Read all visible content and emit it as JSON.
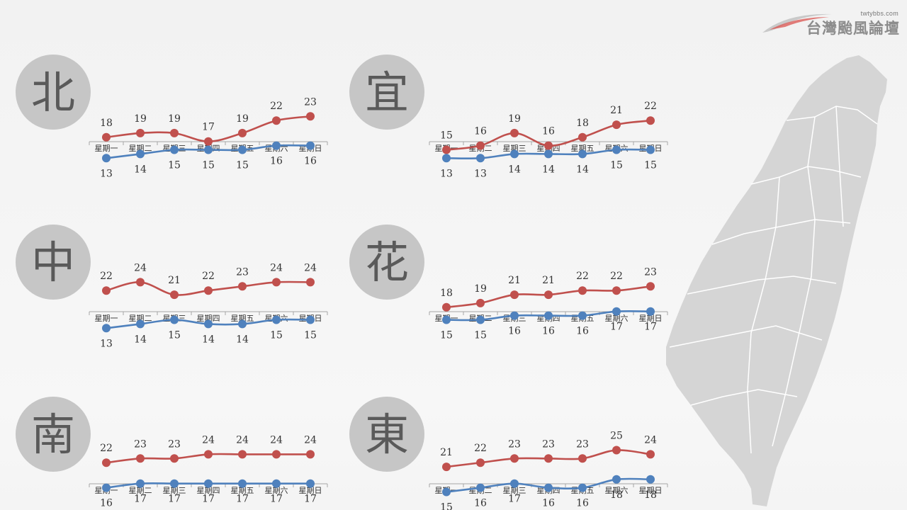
{
  "logo": {
    "site": "twtybbs.com",
    "brand": "台灣颱風論壇"
  },
  "colors": {
    "high": "#c0504d",
    "low": "#4f81bd",
    "circle": "#c6c6c6",
    "axis": "#a6a6a6",
    "map": "#d5d5d5"
  },
  "chart_data": [
    {
      "type": "line",
      "region": "北",
      "categories": [
        "星期一",
        "星期二",
        "星期三",
        "星期四",
        "星期五",
        "星期六",
        "星期日"
      ],
      "series": [
        {
          "values": [
            18,
            19,
            19,
            17,
            19,
            22,
            23
          ]
        },
        {
          "values": [
            13,
            14,
            15,
            15,
            15,
            16,
            16
          ]
        }
      ]
    },
    {
      "type": "line",
      "region": "宜",
      "categories": [
        "星期一",
        "星期二",
        "星期三",
        "星期四",
        "星期五",
        "星期六",
        "星期日"
      ],
      "series": [
        {
          "values": [
            15,
            16,
            19,
            16,
            18,
            21,
            22
          ]
        },
        {
          "values": [
            13,
            13,
            14,
            14,
            14,
            15,
            15
          ]
        }
      ]
    },
    {
      "type": "line",
      "region": "中",
      "categories": [
        "星期一",
        "星期二",
        "星期三",
        "星期四",
        "星期五",
        "星期六",
        "星期日"
      ],
      "series": [
        {
          "values": [
            22,
            24,
            21,
            22,
            23,
            24,
            24
          ]
        },
        {
          "values": [
            13,
            14,
            15,
            14,
            14,
            15,
            15
          ]
        }
      ]
    },
    {
      "type": "line",
      "region": "花",
      "categories": [
        "星期一",
        "星期二",
        "星期三",
        "星期四",
        "星期五",
        "星期六",
        "星期日"
      ],
      "series": [
        {
          "values": [
            18,
            19,
            21,
            21,
            22,
            22,
            23
          ]
        },
        {
          "values": [
            15,
            15,
            16,
            16,
            16,
            17,
            17
          ]
        }
      ]
    },
    {
      "type": "line",
      "region": "南",
      "categories": [
        "星期一",
        "星期二",
        "星期三",
        "星期四",
        "星期五",
        "星期六",
        "星期日"
      ],
      "series": [
        {
          "values": [
            22,
            23,
            23,
            24,
            24,
            24,
            24
          ]
        },
        {
          "values": [
            16,
            17,
            17,
            17,
            17,
            17,
            17
          ]
        }
      ]
    },
    {
      "type": "line",
      "region": "東",
      "categories": [
        "星期一",
        "星期二",
        "星期三",
        "星期四",
        "星期五",
        "星期六",
        "星期日"
      ],
      "series": [
        {
          "values": [
            21,
            22,
            23,
            23,
            23,
            25,
            24
          ]
        },
        {
          "values": [
            15,
            16,
            17,
            16,
            16,
            18,
            18
          ]
        }
      ]
    }
  ]
}
